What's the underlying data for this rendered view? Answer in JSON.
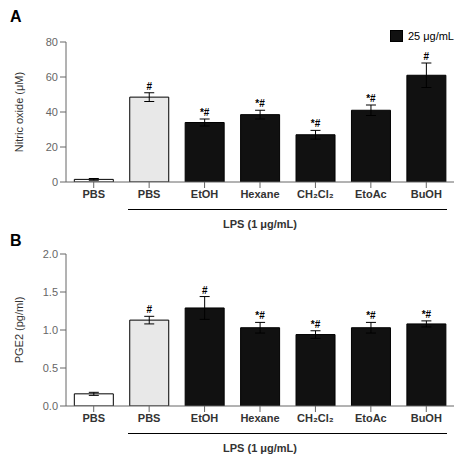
{
  "chart_data": [
    {
      "type": "bar",
      "title": "A",
      "categories": [
        "PBS",
        "PBS",
        "EtOH",
        "Hexane",
        "CH₂Cl₂",
        "EtoAc",
        "BuOH"
      ],
      "values": [
        1.5,
        48.5,
        34.0,
        38.5,
        27.0,
        41.0,
        61.0
      ],
      "errors": [
        0.5,
        2.5,
        2.0,
        2.5,
        2.5,
        3.0,
        7.0
      ],
      "colors": [
        "#ffffff",
        "#e8e8e8",
        "#111111",
        "#111111",
        "#111111",
        "#111111",
        "#111111"
      ],
      "ylabel": "Nitric oxide (μM)",
      "xlabel": "LPS (1 μg/mL)",
      "ylim": [
        0,
        80
      ],
      "yticks": [
        0,
        20,
        40,
        60,
        80
      ],
      "annotations": [
        null,
        "#",
        "*#",
        "*#",
        "*#",
        "*#",
        "#"
      ],
      "legend": "upper right",
      "legend_entries": [
        {
          "name": "25 μg/mL",
          "color": "#111111"
        }
      ],
      "grid": false
    },
    {
      "type": "bar",
      "title": "B",
      "categories": [
        "PBS",
        "PBS",
        "EtOH",
        "Hexane",
        "CH₂Cl₂",
        "EtoAc",
        "BuOH"
      ],
      "values": [
        0.16,
        1.13,
        1.29,
        1.03,
        0.94,
        1.03,
        1.08
      ],
      "errors": [
        0.02,
        0.05,
        0.15,
        0.07,
        0.05,
        0.07,
        0.04
      ],
      "colors": [
        "#ffffff",
        "#e8e8e8",
        "#111111",
        "#111111",
        "#111111",
        "#111111",
        "#111111"
      ],
      "ylabel": "PGE2 (pg/ml)",
      "xlabel": "LPS (1 μg/mL)",
      "ylim": [
        0,
        2.0
      ],
      "yticks": [
        {
          "value": 0,
          "label": "0.0"
        },
        0.5,
        {
          "value": 1,
          "label": "1.0"
        },
        1.5,
        {
          "value": 2,
          "label": "2.0"
        }
      ],
      "annotations": [
        null,
        "#",
        "#",
        "*#",
        "*#",
        "*#",
        "*#"
      ],
      "grid": false
    }
  ]
}
